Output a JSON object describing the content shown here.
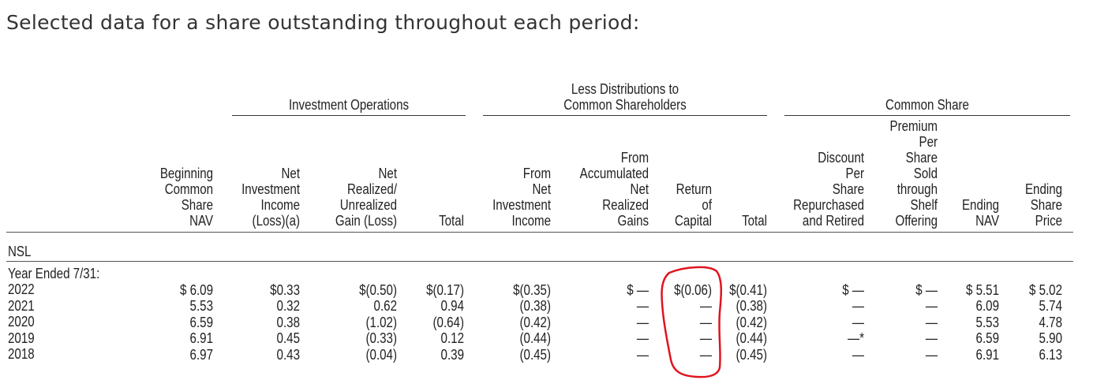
{
  "title": "Selected data for a share outstanding throughout each period:",
  "groups": {
    "investment_operations": "Investment Operations",
    "less_distributions": "Less Distributions to\nCommon Shareholders",
    "common_share": "Common Share"
  },
  "headers": [
    "Beginning\nCommon\nShare\nNAV",
    "Net\nInvestment\nIncome\n(Loss)(a)",
    "Net\nRealized/\nUnrealized\nGain (Loss)",
    "Total",
    "From\nNet\nInvestment\nIncome",
    "From\nAccumulated\nNet\nRealized\nGains",
    "Return\nof\nCapital",
    "Total",
    "Discount\nPer\nShare\nRepurchased\nand Retired",
    "Premium\nPer\nShare\nSold\nthrough\nShelf\nOffering",
    "Ending\nNAV",
    "Ending\nShare\nPrice"
  ],
  "fund": "NSL",
  "period_label": "Year Ended 7/31:",
  "years": [
    "2022",
    "2021",
    "2020",
    "2019",
    "2018"
  ],
  "columns": [
    [
      "$ 6.09",
      "5.53",
      "6.59",
      "6.91",
      "6.97"
    ],
    [
      "$0.33",
      "0.32",
      "0.38",
      "0.45",
      "0.43"
    ],
    [
      "$(0.50)",
      "0.62",
      "(1.02)",
      "(0.33)",
      "(0.04)"
    ],
    [
      "$(0.17)",
      "0.94",
      "(0.64)",
      "0.12",
      "0.39"
    ],
    [
      "$(0.35)",
      "(0.38)",
      "(0.42)",
      "(0.44)",
      "(0.45)"
    ],
    [
      "$ —",
      "—",
      "—",
      "—",
      "—"
    ],
    [
      "$(0.06)",
      "—",
      "—",
      "—",
      "—"
    ],
    [
      "$(0.41)",
      "(0.38)",
      "(0.42)",
      "(0.44)",
      "(0.45)"
    ],
    [
      "$ —",
      "—",
      "—",
      "—*",
      "—"
    ],
    [
      "$ —",
      "—",
      "—",
      "—",
      "—"
    ],
    [
      "$ 5.51",
      "6.09",
      "5.53",
      "6.59",
      "6.91"
    ],
    [
      "$ 5.02",
      "5.74",
      "4.78",
      "5.90",
      "6.13"
    ]
  ],
  "annotation_color": "#e0141e"
}
